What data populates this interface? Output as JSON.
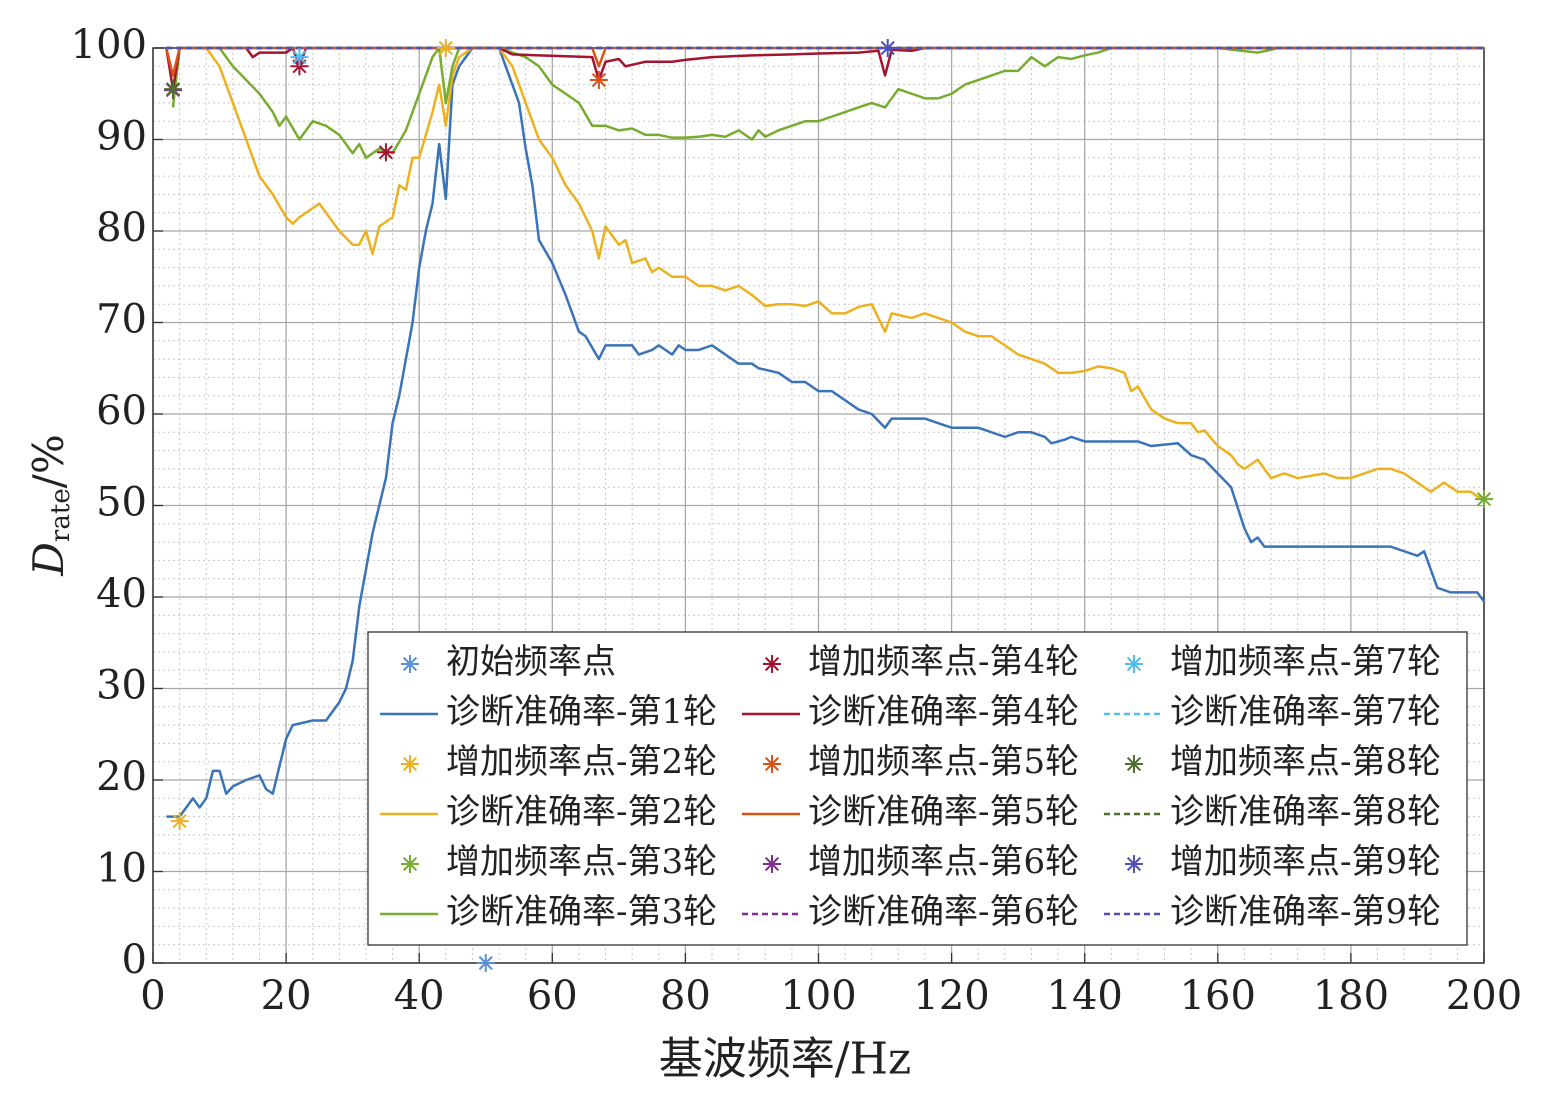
{
  "chart_data": {
    "type": "line",
    "xlabel": "基波频率/Hz",
    "ylabel": {
      "main": "D",
      "sub": "rate",
      "unit": "/%"
    },
    "xlim": [
      0,
      200
    ],
    "xticks": [
      0,
      20,
      40,
      60,
      80,
      100,
      120,
      140,
      160,
      180,
      200
    ],
    "ylim": [
      0,
      100
    ],
    "yticks": [
      0,
      10,
      20,
      30,
      40,
      50,
      60,
      70,
      80,
      90,
      100
    ],
    "grid": true,
    "minor_grid": true,
    "legend": "lower right",
    "legend_columns": 3,
    "series": [
      {
        "name": "初始频率点",
        "mode": "markers",
        "color": "#5b8fd6",
        "x": [
          50
        ],
        "values": [
          0
        ]
      },
      {
        "name": "诊断准确率-第1轮",
        "mode": "lines",
        "color": "#3a73b8",
        "x": [
          2,
          4,
          6,
          7,
          8,
          9,
          10,
          11,
          12,
          14,
          16,
          17,
          18,
          20,
          21,
          24,
          26,
          28,
          29,
          30,
          31,
          32,
          33,
          34,
          35,
          36,
          37,
          38,
          39,
          40,
          41,
          42,
          43,
          44,
          45,
          46,
          47,
          48,
          50,
          52,
          53,
          54,
          55,
          56,
          57,
          58,
          60,
          62,
          64,
          65,
          67,
          68,
          70,
          72,
          73,
          75,
          76,
          78,
          79,
          80,
          82,
          84,
          85,
          87,
          88,
          90,
          91,
          94,
          96,
          98,
          100,
          102,
          104,
          106,
          108,
          110,
          111,
          114,
          116,
          118,
          120,
          124,
          128,
          130,
          132,
          134,
          135,
          137,
          138,
          140,
          144,
          148,
          150,
          154,
          156,
          158,
          160,
          162,
          164,
          165,
          166,
          167,
          168,
          170,
          180,
          186,
          188,
          190,
          191,
          193,
          195,
          199,
          200
        ],
        "values": [
          16,
          16,
          18,
          17,
          18,
          21,
          21,
          18.5,
          19.3,
          20,
          20.5,
          19,
          18.5,
          24.5,
          26,
          26.5,
          26.5,
          28.5,
          30,
          33,
          39,
          43,
          47,
          50,
          53,
          59,
          62,
          66,
          70,
          76,
          80,
          83,
          89.5,
          83.5,
          96,
          98,
          99,
          100,
          100,
          100,
          98,
          96,
          94,
          89,
          85,
          79,
          76.5,
          73,
          69,
          68.5,
          66,
          67.5,
          67.5,
          67.5,
          66.5,
          67,
          67.5,
          66.5,
          67.5,
          67,
          67,
          67.5,
          67,
          66,
          65.5,
          65.5,
          65,
          64.5,
          63.5,
          63.5,
          62.5,
          62.5,
          61.5,
          60.5,
          60,
          58.5,
          59.5,
          59.5,
          59.5,
          59,
          58.5,
          58.5,
          57.5,
          58,
          58,
          57.5,
          56.8,
          57.2,
          57.5,
          57,
          57,
          57,
          56.5,
          56.8,
          55.5,
          55,
          53.5,
          52,
          47.5,
          46,
          46.5,
          45.5,
          45.5,
          45.5,
          45.5,
          45.5,
          45,
          44.5,
          45,
          41,
          40.5,
          40.5,
          39.5
        ]
      },
      {
        "name": "增加频率点-第2轮",
        "mode": "markers",
        "color": "#edb120",
        "x": [
          4,
          44
        ],
        "values": [
          15.5,
          100
        ]
      },
      {
        "name": "诊断准确率-第2轮",
        "mode": "lines",
        "color": "#edb120",
        "x": [
          8,
          10,
          12,
          14,
          16,
          18,
          20,
          21,
          22,
          24,
          25,
          26,
          28,
          30,
          31,
          32,
          33,
          34,
          36,
          37,
          38,
          39,
          40,
          42,
          43,
          44,
          45,
          46,
          48,
          52,
          54,
          56,
          58,
          60,
          62,
          64,
          66,
          67,
          68,
          70,
          71,
          72,
          74,
          75,
          76,
          78,
          80,
          82,
          84,
          86,
          88,
          90,
          92,
          94,
          96,
          98,
          100,
          102,
          104,
          106,
          108,
          110,
          111,
          114,
          116,
          118,
          120,
          122,
          124,
          126,
          128,
          130,
          132,
          134,
          136,
          138,
          140,
          142,
          144,
          146,
          147,
          148,
          150,
          152,
          154,
          156,
          157,
          158,
          160,
          162,
          163,
          164,
          166,
          168,
          170,
          172,
          176,
          178,
          180,
          182,
          184,
          186,
          188,
          190,
          192,
          194,
          196,
          198,
          200
        ],
        "values": [
          100,
          98,
          94,
          90,
          86,
          84,
          81.5,
          80.8,
          81.5,
          82.5,
          83,
          82,
          80,
          78.5,
          78.5,
          80,
          77.5,
          80.5,
          81.5,
          85,
          84.5,
          88,
          88,
          93,
          96,
          91.5,
          97,
          99,
          100,
          100,
          98,
          94,
          90,
          88,
          85,
          83,
          80,
          77,
          80.5,
          78.5,
          79,
          76.5,
          77,
          75.5,
          76,
          75,
          75,
          74,
          74,
          73.5,
          74,
          73,
          71.8,
          72,
          72,
          71.8,
          72.3,
          71,
          71,
          71.7,
          72,
          69,
          71,
          70.5,
          71,
          70.5,
          70,
          69,
          68.5,
          68.5,
          67.5,
          66.5,
          66,
          65.5,
          64.5,
          64.5,
          64.7,
          65.2,
          65,
          64.5,
          62.5,
          63,
          60.5,
          59.5,
          59,
          59,
          58,
          58.2,
          56.5,
          55.5,
          54.5,
          54,
          55,
          53,
          53.5,
          53,
          53.5,
          53,
          53,
          53.5,
          54,
          54,
          53.5,
          52.5,
          51.5,
          52.5,
          51.5,
          51.5,
          50.5
        ]
      },
      {
        "name": "增加频率点-第3轮",
        "mode": "markers",
        "color": "#77ac30",
        "x": [
          200
        ],
        "values": [
          50.7
        ]
      },
      {
        "name": "诊断准确率-第3轮",
        "mode": "lines",
        "color": "#77ac30",
        "x": [
          3,
          4,
          10,
          12,
          14,
          16,
          18,
          19,
          20,
          22,
          24,
          26,
          28,
          30,
          31,
          32,
          34,
          36,
          38,
          40,
          42,
          43,
          44,
          45,
          46,
          52,
          54,
          56,
          58,
          60,
          62,
          64,
          66,
          68,
          70,
          72,
          74,
          76,
          78,
          80,
          82,
          84,
          86,
          88,
          90,
          91,
          92,
          94,
          96,
          98,
          100,
          102,
          104,
          106,
          108,
          110,
          112,
          114,
          116,
          118,
          120,
          122,
          124,
          126,
          128,
          130,
          132,
          134,
          136,
          138,
          140,
          142,
          144,
          160,
          166,
          168,
          169,
          200
        ],
        "values": [
          93.5,
          100,
          100,
          98,
          96.5,
          95,
          93,
          91.5,
          92.5,
          90,
          92,
          91.5,
          90.5,
          88.5,
          89.5,
          88,
          89,
          88.5,
          91,
          95,
          99,
          100,
          94,
          98,
          100,
          100,
          99.5,
          99,
          98,
          96,
          95,
          94,
          91.5,
          91.5,
          91,
          91.2,
          90.5,
          90.5,
          90.2,
          90.2,
          90.3,
          90.5,
          90.3,
          91,
          90,
          91,
          90.3,
          91,
          91.5,
          92,
          92,
          92.5,
          93,
          93.5,
          94,
          93.5,
          95.5,
          95,
          94.5,
          94.5,
          95,
          96,
          96.5,
          97,
          97.5,
          97.5,
          99,
          98,
          99,
          98.8,
          99.2,
          99.5,
          100,
          100,
          99.5,
          99.8,
          100,
          100
        ]
      },
      {
        "name": "增加频率点-第4轮",
        "mode": "markers",
        "color": "#a2142f",
        "x": [
          22,
          35
        ],
        "values": [
          98,
          88.6
        ]
      },
      {
        "name": "诊断准确率-第4轮",
        "mode": "lines",
        "color": "#a2142f",
        "x": [
          2,
          3,
          4,
          14,
          15,
          16,
          20,
          21,
          22,
          23,
          52,
          54,
          58,
          62,
          66,
          67,
          68,
          70,
          71,
          74,
          78,
          80,
          84,
          90,
          96,
          100,
          106,
          109,
          110,
          111,
          114,
          116,
          200
        ],
        "values": [
          100,
          95.5,
          100,
          100,
          99,
          99.5,
          99.5,
          100,
          98,
          100,
          100,
          99.3,
          99.2,
          99.1,
          99,
          96.5,
          98.5,
          98.8,
          98,
          98.5,
          98.5,
          98.7,
          99,
          99.2,
          99.3,
          99.4,
          99.5,
          99.7,
          97,
          99.8,
          99.7,
          100,
          100
        ]
      },
      {
        "name": "增加频率点-第5轮",
        "mode": "markers",
        "color": "#d95319",
        "x": [
          67
        ],
        "values": [
          96.5
        ]
      },
      {
        "name": "诊断准确率-第5轮",
        "mode": "lines",
        "color": "#d95319",
        "x": [
          2,
          3,
          4,
          66,
          67,
          68,
          200
        ],
        "values": [
          100,
          97,
          100,
          100,
          98,
          100,
          100
        ]
      },
      {
        "name": "增加频率点-第6轮",
        "mode": "markers",
        "color": "#7e2f8e",
        "x": [
          3
        ],
        "values": [
          95.4
        ]
      },
      {
        "name": "诊断准确率-第6轮",
        "mode": "lines",
        "dash": true,
        "color": "#7e2f8e",
        "x": [
          2,
          200
        ],
        "values": [
          100,
          100
        ]
      },
      {
        "name": "增加频率点-第7轮",
        "mode": "markers",
        "color": "#4dbeee",
        "x": [
          22
        ],
        "values": [
          99
        ]
      },
      {
        "name": "诊断准确率-第7轮",
        "mode": "lines",
        "dash": true,
        "color": "#4dbeee",
        "x": [
          2,
          200
        ],
        "values": [
          100,
          100
        ]
      },
      {
        "name": "增加频率点-第8轮",
        "mode": "markers",
        "color": "#4f6f2f",
        "x": [
          3
        ],
        "values": [
          95.5
        ]
      },
      {
        "name": "诊断准确率-第8轮",
        "mode": "lines",
        "dash": true,
        "color": "#4f6f2f",
        "x": [
          2,
          200
        ],
        "values": [
          100,
          100
        ]
      },
      {
        "name": "增加频率点-第9轮",
        "mode": "markers",
        "color": "#5050b8",
        "x": [
          110.4
        ],
        "values": [
          100
        ]
      },
      {
        "name": "诊断准确率-第9轮",
        "mode": "lines",
        "dash": true,
        "color": "#5050b8",
        "x": [
          2,
          200
        ],
        "values": [
          100,
          100
        ]
      }
    ]
  }
}
